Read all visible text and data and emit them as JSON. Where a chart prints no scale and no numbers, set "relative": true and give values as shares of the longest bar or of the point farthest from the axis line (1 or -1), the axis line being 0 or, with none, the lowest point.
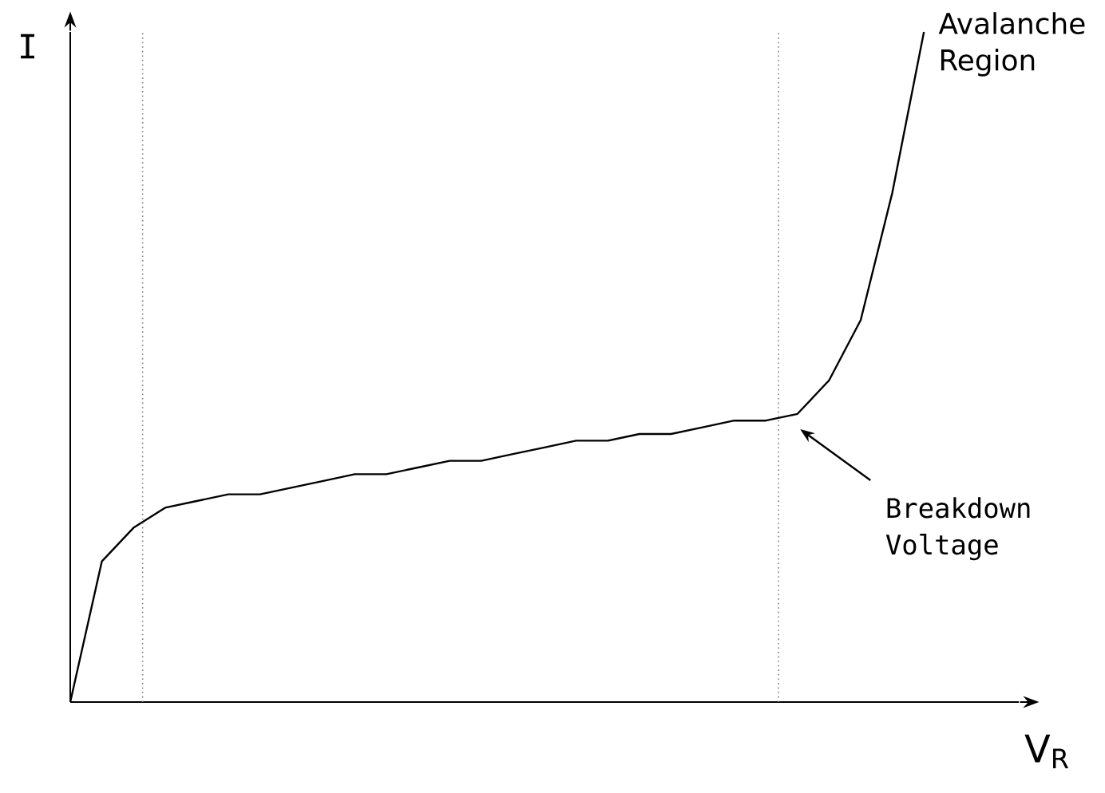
{
  "chart_data": {
    "type": "line",
    "relative": true,
    "xlabel": "V$_{R}$",
    "ylabel": "I",
    "color": "#000000",
    "categories": [
      null,
      null,
      null,
      null,
      null,
      null,
      null,
      null,
      null,
      null,
      null,
      null,
      null,
      null,
      null,
      null,
      null,
      null,
      null,
      null,
      null,
      null,
      null,
      null,
      null,
      null,
      null,
      null,
      null,
      null,
      null
    ],
    "values": [
      0,
      0.21,
      0.26,
      0.29,
      0.3,
      0.31,
      0.31,
      0.32,
      0.33,
      0.34,
      0.34,
      0.35,
      0.36,
      0.36,
      0.37,
      0.38,
      0.39,
      0.39,
      0.4,
      0.4,
      0.41,
      0.42,
      0.42,
      0.43,
      0.48,
      0.57,
      0.76,
      1,
      null,
      null,
      null
    ],
    "annotations": [
      "Avalanche Region",
      "Breakdown Voltage"
    ]
  }
}
